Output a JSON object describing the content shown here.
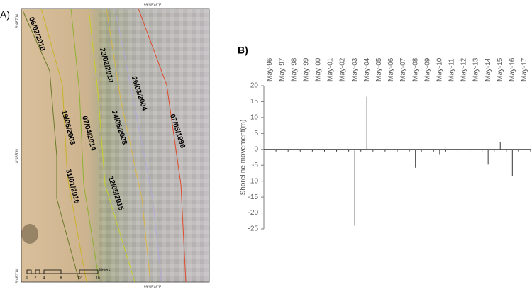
{
  "map": {
    "panel_label": "A)",
    "dates": [
      "06/02/2018",
      "23/02/2010",
      "26/03/2004",
      "07/05/1996",
      "19/05/2003",
      "07/04/2014",
      "24/05/2008",
      "31/01/2016",
      "12/05/2015"
    ],
    "coord_top": "99°55'46\"E",
    "coord_bottom": "99°55'46\"E",
    "coord_left_top": "8°48'7\"N",
    "coord_left_mid": "8°48'5\"N",
    "coord_left_bottom": "8°48'3\"N",
    "scale_unit": "Meters",
    "scale_labels": [
      "0",
      "2",
      "4",
      "8",
      "12",
      "16"
    ]
  },
  "chart_data": {
    "type": "bar",
    "panel_label": "B)",
    "y_label": "Shoreline movement(m)",
    "categories": [
      "May-96",
      "May-97",
      "May-98",
      "May-99",
      "May-00",
      "May-01",
      "May-02",
      "May-03",
      "May-04",
      "May-05",
      "May-06",
      "May-07",
      "May-08",
      "May-09",
      "May-10",
      "May-11",
      "May-12",
      "May-13",
      "May-14",
      "May-15",
      "May-16",
      "May-17"
    ],
    "values": [
      null,
      null,
      null,
      null,
      null,
      null,
      null,
      -24,
      16.5,
      null,
      null,
      null,
      -5.8,
      null,
      -1.5,
      null,
      null,
      null,
      -4.8,
      2.2,
      -8.5,
      null
    ],
    "color": "#595959",
    "ylim": [
      -25,
      20
    ],
    "yticks": [
      -25,
      -20,
      -15,
      -10,
      -5,
      0,
      5,
      10,
      15,
      20
    ],
    "grid": false
  }
}
